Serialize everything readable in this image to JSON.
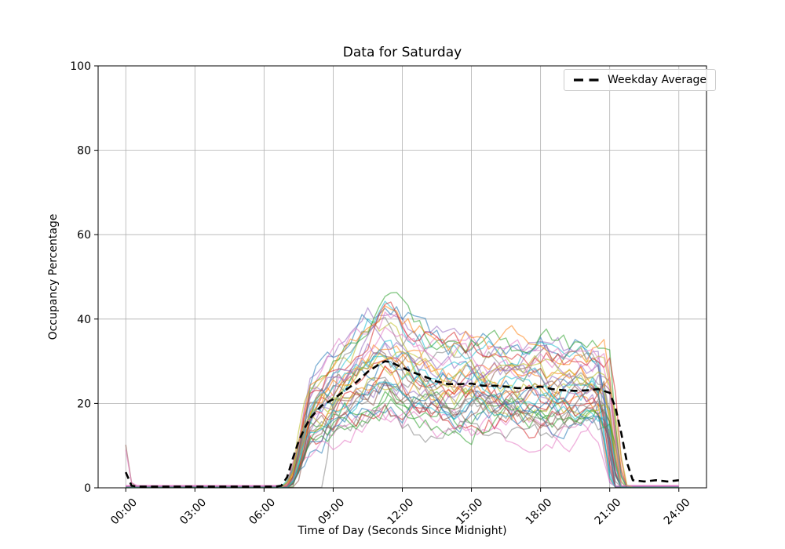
{
  "chart_data": {
    "type": "line",
    "title": "Data for Saturday",
    "xlabel": "Time of Day (Seconds Since Midnight)",
    "ylabel": "Occupancy Percentage",
    "ylim": [
      0,
      100
    ],
    "xlim_hours": [
      -1.2,
      25.2
    ],
    "grid": true,
    "grid_color": "#b0b0b0",
    "axis_color": "#000000",
    "xticks": [
      {
        "hour": 0,
        "label": "00:00"
      },
      {
        "hour": 3,
        "label": "03:00"
      },
      {
        "hour": 6,
        "label": "06:00"
      },
      {
        "hour": 9,
        "label": "09:00"
      },
      {
        "hour": 12,
        "label": "12:00"
      },
      {
        "hour": 15,
        "label": "15:00"
      },
      {
        "hour": 18,
        "label": "18:00"
      },
      {
        "hour": 21,
        "label": "21:00"
      },
      {
        "hour": 24,
        "label": "24:00"
      }
    ],
    "yticks": [
      {
        "value": 0,
        "label": "0"
      },
      {
        "value": 20,
        "label": "20"
      },
      {
        "value": 40,
        "label": "40"
      },
      {
        "value": 60,
        "label": "60"
      },
      {
        "value": 80,
        "label": "80"
      },
      {
        "value": 100,
        "label": "100"
      }
    ],
    "legend": {
      "position": "upper right",
      "entries": [
        {
          "label": "Weekday Average",
          "line_style": "dashed",
          "color": "#000000"
        }
      ]
    },
    "average_series": {
      "name": "Weekday Average",
      "color": "#000000",
      "line_style": "dashed",
      "line_width": 2.6,
      "x_hours": [
        0,
        0.25,
        0.5,
        1,
        1.5,
        2,
        2.5,
        3,
        3.5,
        4,
        4.5,
        5,
        5.5,
        6,
        6.5,
        6.75,
        7,
        7.25,
        7.5,
        7.75,
        8,
        8.25,
        8.5,
        9,
        9.5,
        10,
        10.5,
        11,
        11.25,
        11.5,
        12,
        12.5,
        13,
        13.5,
        14,
        14.5,
        15,
        15.5,
        16,
        16.5,
        17,
        17.5,
        18,
        18.5,
        19,
        19.5,
        20,
        20.5,
        21,
        21.25,
        21.5,
        21.75,
        22,
        22.5,
        23,
        23.5,
        24
      ],
      "values": [
        3.7,
        0.5,
        0.3,
        0.3,
        0.3,
        0.3,
        0.3,
        0.3,
        0.3,
        0.3,
        0.3,
        0.3,
        0.3,
        0.3,
        0.3,
        0.5,
        2.5,
        7,
        11,
        14,
        16.5,
        18,
        19.5,
        21,
        23,
        25,
        27.5,
        29.3,
        30,
        29.8,
        28.5,
        27.3,
        26.3,
        25.2,
        24.6,
        24.6,
        24.7,
        24.2,
        24.2,
        24,
        23.6,
        23.7,
        24,
        23.4,
        23.1,
        23,
        23.1,
        23.4,
        22.5,
        19,
        13,
        6,
        1.8,
        1.5,
        1.8,
        1.5,
        1.8
      ]
    },
    "ensemble": {
      "count": 40,
      "alpha": 0.55,
      "line_width": 1.4,
      "seed": 11,
      "step_hours": 0.25,
      "colors": [
        "#1f77b4",
        "#ff7f0e",
        "#2ca02c",
        "#d62728",
        "#9467bd",
        "#8c564b",
        "#e377c2",
        "#7f7f7f",
        "#bcbd22",
        "#17becf"
      ],
      "scale_range": [
        0.55,
        1.45
      ],
      "start_hour_range": [
        6.6,
        7.1
      ],
      "end_hour_range": [
        21.0,
        21.8
      ],
      "ramp_in_hours": 1.0,
      "ramp_out_hours": 0.6,
      "noise_step": 5.2,
      "noise_persistence": 0.72,
      "value_cap": 52,
      "plateau_value_range": [
        10,
        50
      ],
      "baseline_levels": {
        "4": 0.3,
        "6": 0.5,
        "default": 0.08
      },
      "midnight_spikes": [
        {
          "trace": 5,
          "value": 10.2
        },
        {
          "trace": 6,
          "value": 9.0
        }
      ],
      "late_riser": {
        "trace": 17,
        "start_hour": 8.6,
        "ramp_in_hours": 0.5
      }
    }
  }
}
